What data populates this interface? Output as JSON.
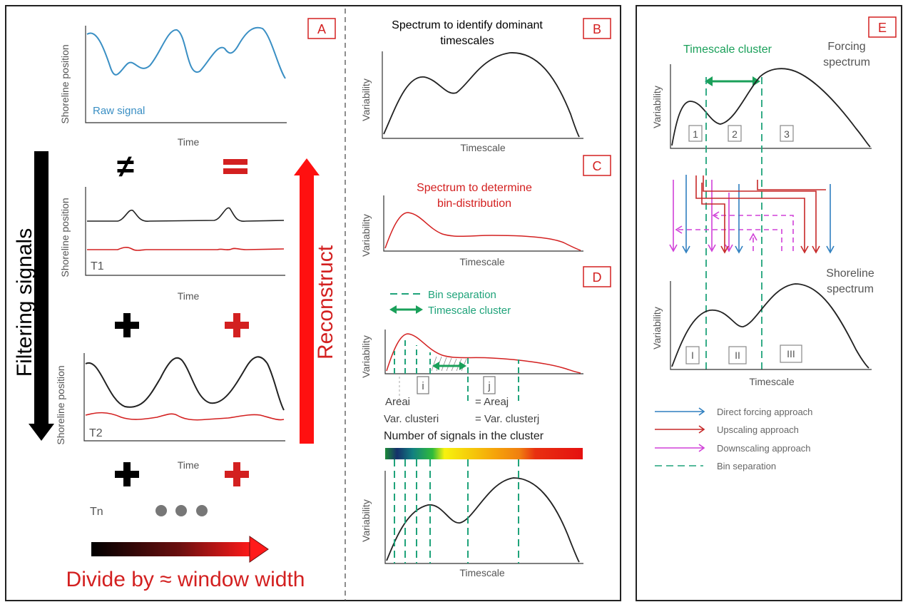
{
  "panel_a": {
    "tag": "A",
    "shoreline_label": "Shoreline position",
    "time_label": "Time",
    "raw_signal": "Raw signal",
    "not_equal": "≠",
    "equal": "=",
    "t1": "T1",
    "t2": "T2",
    "tn": "Tn",
    "filtering": "Filtering signals",
    "reconstruct": "Reconstruct",
    "divide": "Divide by ≈ window width"
  },
  "panel_b": {
    "tag": "B",
    "title_line1": "Spectrum to identify dominant",
    "title_line2": "timescales",
    "ylabel": "Variability",
    "xlabel": "Timescale"
  },
  "panel_c": {
    "tag": "C",
    "title_line1": "Spectrum to determine",
    "title_line2": "bin-distribution",
    "ylabel": "Variability",
    "xlabel": "Timescale"
  },
  "panel_d": {
    "tag": "D",
    "legend_bin": "Bin separation",
    "legend_cluster": "Timescale cluster",
    "ylabel": "Variability",
    "bin_i": "i",
    "bin_j": "j",
    "area_i": "Areai",
    "area_j": "= Areaj",
    "var_i": "Var. clusteri",
    "var_j": "= Var. clusterj",
    "number_signals": "Number of signals in the cluster",
    "ylabel2": "Variability",
    "xlabel2": "Timescale"
  },
  "panel_e": {
    "tag": "E",
    "cluster_label": "Timescale cluster",
    "forcing_line1": "Forcing",
    "forcing_line2": "spectrum",
    "ylabel": "Variability",
    "bins_top": [
      "1",
      "2",
      "3"
    ],
    "shoreline_line1": "Shoreline",
    "shoreline_line2": "spectrum",
    "ylabel2": "Variability",
    "bins_bottom": [
      "I",
      "II",
      "III"
    ],
    "xlabel": "Timescale",
    "legend": [
      {
        "label": "Direct forcing approach",
        "color": "#2f7fbf"
      },
      {
        "label": "Upscaling approach",
        "color": "#c62828"
      },
      {
        "label": "Downscaling approach",
        "color": "#d040d8"
      },
      {
        "label": "Bin separation",
        "color": "#1fa37a"
      }
    ]
  },
  "colors": {
    "raw": "#3a8fc4",
    "red": "#d32020",
    "green": "#1fa37a",
    "arrow_green": "#1aa05a",
    "magenta": "#d040d8"
  }
}
